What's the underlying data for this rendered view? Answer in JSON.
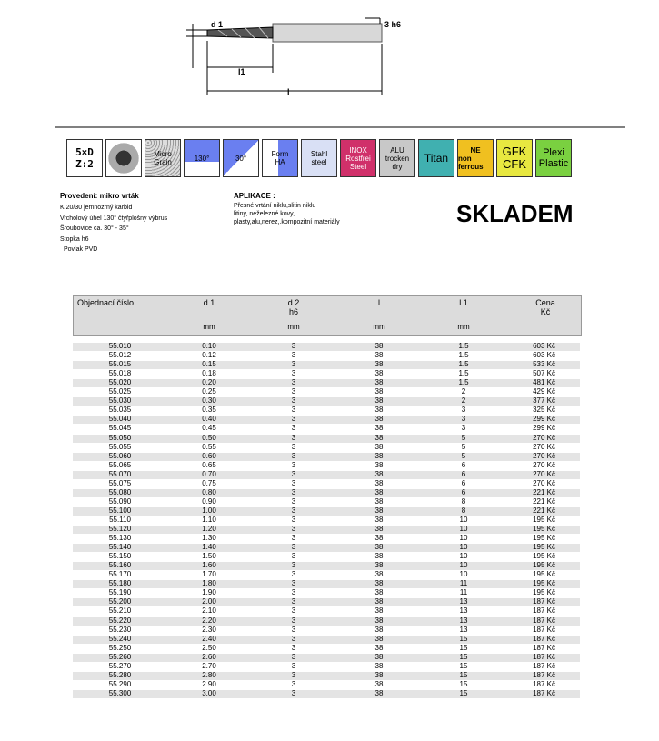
{
  "drawing": {
    "d1": "d 1",
    "shank": "3 h6",
    "l1": "l1",
    "l": "l"
  },
  "icons": [
    [
      "5×D",
      "Z:2"
    ],
    [],
    [
      "Micro",
      "Grain"
    ],
    [
      "130°"
    ],
    [
      "30°"
    ],
    [
      "Form",
      "HA"
    ],
    [
      "Stahl",
      "steel"
    ],
    [
      "INOX",
      "Rostfrei",
      "Steel"
    ],
    [
      "ALU",
      "trocken",
      "dry"
    ],
    [
      "Titan"
    ],
    [
      "NE",
      "non ferrous"
    ],
    [
      "GFK",
      "CFK"
    ],
    [
      "Plexi",
      "Plastic"
    ]
  ],
  "description": {
    "title": "Provedení:   mikro vrták",
    "lines": [
      "K 20/30 jemnozrný karbid",
      "Vrcholový úhel 130° čtyřplošný výbrus",
      "Šroubovice  ca. 30° - 35°",
      "Stopka h6",
      "Povlak  PVD"
    ]
  },
  "application": {
    "title": "APLIKACE :",
    "lines": [
      "Přesné vrtání niklu,slitin niklu",
      "litiny, neželezné kovy,",
      "plasty,alu,nerez,.kompozitní materiály"
    ]
  },
  "stock": "SKLADEM",
  "table": {
    "header": [
      [
        "Objednací číslo"
      ],
      [
        "d 1"
      ],
      [
        "d 2",
        "h6"
      ],
      [
        "l"
      ],
      [
        "l 1"
      ],
      [
        "Cena",
        "Kč"
      ]
    ],
    "units": [
      "mm",
      "mm",
      "mm",
      "mm"
    ],
    "rows": [
      [
        "55.010",
        "0.10",
        "3",
        "38",
        "1.5",
        "603 Kč"
      ],
      [
        "55.012",
        "0.12",
        "3",
        "38",
        "1.5",
        "603 Kč"
      ],
      [
        "55.015",
        "0.15",
        "3",
        "38",
        "1.5",
        "533 Kč"
      ],
      [
        "55.018",
        "0.18",
        "3",
        "38",
        "1.5",
        "507 Kč"
      ],
      [
        "55.020",
        "0.20",
        "3",
        "38",
        "1.5",
        "481 Kč"
      ],
      [
        "55.025",
        "0.25",
        "3",
        "38",
        "2",
        "429 Kč"
      ],
      [
        "55.030",
        "0.30",
        "3",
        "38",
        "2",
        "377 Kč"
      ],
      [
        "55.035",
        "0.35",
        "3",
        "38",
        "3",
        "325 Kč"
      ],
      [
        "55.040",
        "0.40",
        "3",
        "38",
        "3",
        "299 Kč"
      ],
      [
        "55.045",
        "0.45",
        "3",
        "38",
        "3",
        "299 Kč"
      ],
      [
        "55.050",
        "0.50",
        "3",
        "38",
        "5",
        "270 Kč"
      ],
      [
        "55.055",
        "0.55",
        "3",
        "38",
        "5",
        "270 Kč"
      ],
      [
        "55.060",
        "0.60",
        "3",
        "38",
        "5",
        "270 Kč"
      ],
      [
        "55.065",
        "0.65",
        "3",
        "38",
        "6",
        "270 Kč"
      ],
      [
        "55.070",
        "0.70",
        "3",
        "38",
        "6",
        "270 Kč"
      ],
      [
        "55.075",
        "0.75",
        "3",
        "38",
        "6",
        "270 Kč"
      ],
      [
        "55.080",
        "0.80",
        "3",
        "38",
        "6",
        "221 Kč"
      ],
      [
        "55.090",
        "0.90",
        "3",
        "38",
        "8",
        "221 Kč"
      ],
      [
        "55.100",
        "1.00",
        "3",
        "38",
        "8",
        "221 Kč"
      ],
      [
        "55.110",
        "1.10",
        "3",
        "38",
        "10",
        "195 Kč"
      ],
      [
        "55.120",
        "1.20",
        "3",
        "38",
        "10",
        "195 Kč"
      ],
      [
        "55.130",
        "1.30",
        "3",
        "38",
        "10",
        "195 Kč"
      ],
      [
        "55.140",
        "1.40",
        "3",
        "38",
        "10",
        "195 Kč"
      ],
      [
        "55.150",
        "1.50",
        "3",
        "38",
        "10",
        "195 Kč"
      ],
      [
        "55.160",
        "1.60",
        "3",
        "38",
        "10",
        "195 Kč"
      ],
      [
        "55.170",
        "1.70",
        "3",
        "38",
        "10",
        "195 Kč"
      ],
      [
        "55.180",
        "1.80",
        "3",
        "38",
        "11",
        "195 Kč"
      ],
      [
        "55.190",
        "1.90",
        "3",
        "38",
        "11",
        "195 Kč"
      ],
      [
        "55.200",
        "2.00",
        "3",
        "38",
        "13",
        "187 Kč"
      ],
      [
        "55.210",
        "2.10",
        "3",
        "38",
        "13",
        "187 Kč"
      ],
      [
        "55.220",
        "2.20",
        "3",
        "38",
        "13",
        "187 Kč"
      ],
      [
        "55.230",
        "2.30",
        "3",
        "38",
        "13",
        "187 Kč"
      ],
      [
        "55.240",
        "2.40",
        "3",
        "38",
        "15",
        "187 Kč"
      ],
      [
        "55.250",
        "2.50",
        "3",
        "38",
        "15",
        "187 Kč"
      ],
      [
        "55.260",
        "2.60",
        "3",
        "38",
        "15",
        "187 Kč"
      ],
      [
        "55.270",
        "2.70",
        "3",
        "38",
        "15",
        "187 Kč"
      ],
      [
        "55.280",
        "2.80",
        "3",
        "38",
        "15",
        "187 Kč"
      ],
      [
        "55.290",
        "2.90",
        "3",
        "38",
        "15",
        "187 Kč"
      ],
      [
        "55.300",
        "3.00",
        "3",
        "38",
        "15",
        "187 Kč"
      ]
    ]
  }
}
